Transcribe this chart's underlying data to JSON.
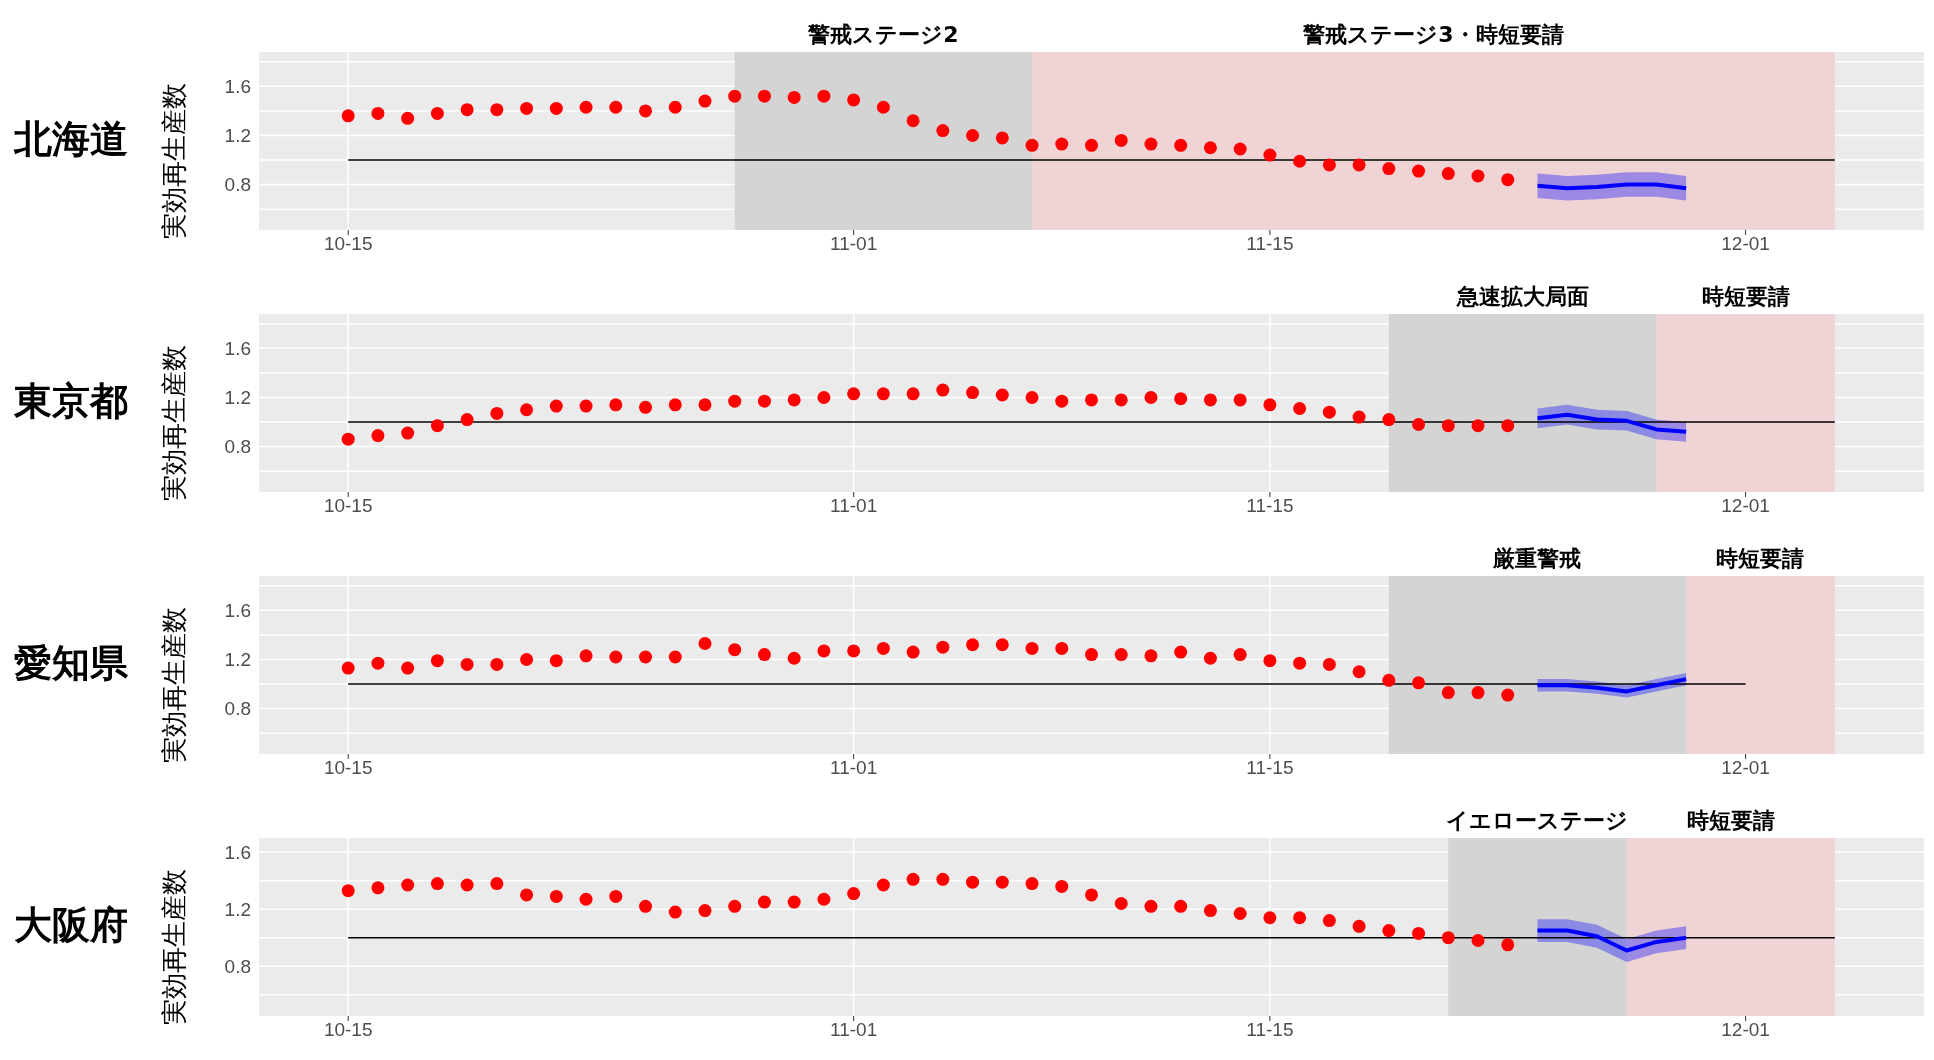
{
  "chart_data": [
    {
      "type": "scatter",
      "title": "北海道",
      "ylabel": "実効再生産数",
      "grid": true,
      "x": [
        "--10-15",
        "--10-16",
        "--10-17",
        "--10-18",
        "--10-19",
        "--10-20",
        "--10-21",
        "--10-22",
        "--10-23",
        "--10-24",
        "--10-25",
        "--10-26",
        "--10-27",
        "--10-28",
        "--10-29",
        "--10-30",
        "--10-31",
        "--11-01",
        "--11-02",
        "--11-03",
        "--11-04",
        "--11-05",
        "--11-06",
        "--11-07",
        "--11-08",
        "--11-09",
        "--11-10",
        "--11-11",
        "--11-12",
        "--11-13",
        "--11-14",
        "--11-15",
        "--11-16",
        "--11-17",
        "--11-18",
        "--11-19",
        "--11-20",
        "--11-21",
        "--11-22",
        "--11-23"
      ],
      "xlim": [
        "--10-12",
        "--12-07"
      ],
      "xticks": [
        {
          "value": "--10-15",
          "label": "10-15"
        },
        {
          "value": "--11-01",
          "label": "11-01"
        },
        {
          "value": "--11-15",
          "label": "11-15"
        },
        {
          "value": "--12-01",
          "label": "12-01"
        }
      ],
      "ylim": [
        0.43,
        1.88
      ],
      "yticks": [
        {
          "value": 0.6,
          "label": null
        },
        0.8,
        {
          "value": 1.0,
          "label": null
        },
        1.2,
        {
          "value": 1.4,
          "label": null
        },
        1.6,
        {
          "value": 1.8,
          "label": null
        }
      ],
      "bands": [
        {
          "axis": "x",
          "from": "--10-28",
          "to": "--11-07",
          "label": "警戒ステージ2",
          "color": "#d4d4d4"
        },
        {
          "axis": "x",
          "from": "--11-07",
          "to": "--12-04",
          "label": "警戒ステージ3・時短要請",
          "color": "#f0d3d5"
        }
      ],
      "series": [
        {
          "type": "line",
          "color": "#000000",
          "x": [
            "--10-15",
            "--12-04"
          ],
          "values": [
            1,
            1
          ]
        },
        {
          "marker": "circle",
          "color": "#ff0000",
          "values": [
            1.36,
            1.38,
            1.34,
            1.38,
            1.41,
            1.41,
            1.42,
            1.42,
            1.43,
            1.43,
            1.4,
            1.43,
            1.48,
            1.52,
            1.52,
            1.51,
            1.52,
            1.49,
            1.43,
            1.32,
            1.24,
            1.2,
            1.18,
            1.12,
            1.13,
            1.12,
            1.16,
            1.13,
            1.12,
            1.1,
            1.09,
            1.04,
            0.99,
            0.96,
            0.96,
            0.93,
            0.91,
            0.89,
            0.87,
            0.84
          ]
        },
        {
          "type": "line",
          "color": "#0000ff",
          "x": [
            "--11-24",
            "--11-25",
            "--11-26",
            "--11-27",
            "--11-28",
            "--11-29"
          ],
          "values": [
            0.79,
            0.77,
            0.78,
            0.8,
            0.8,
            0.77
          ],
          "lower": [
            0.69,
            0.67,
            0.68,
            0.7,
            0.7,
            0.67
          ],
          "upper": [
            0.89,
            0.87,
            0.88,
            0.9,
            0.9,
            0.87
          ]
        }
      ]
    },
    {
      "type": "scatter",
      "title": "東京都",
      "ylabel": "実効再生産数",
      "grid": true,
      "x": [
        "--10-15",
        "--10-16",
        "--10-17",
        "--10-18",
        "--10-19",
        "--10-20",
        "--10-21",
        "--10-22",
        "--10-23",
        "--10-24",
        "--10-25",
        "--10-26",
        "--10-27",
        "--10-28",
        "--10-29",
        "--10-30",
        "--10-31",
        "--11-01",
        "--11-02",
        "--11-03",
        "--11-04",
        "--11-05",
        "--11-06",
        "--11-07",
        "--11-08",
        "--11-09",
        "--11-10",
        "--11-11",
        "--11-12",
        "--11-13",
        "--11-14",
        "--11-15",
        "--11-16",
        "--11-17",
        "--11-18",
        "--11-19",
        "--11-20",
        "--11-21",
        "--11-22",
        "--11-23"
      ],
      "xlim": [
        "--10-12",
        "--12-07"
      ],
      "xticks": [
        {
          "value": "--10-15",
          "label": "10-15"
        },
        {
          "value": "--11-01",
          "label": "11-01"
        },
        {
          "value": "--11-15",
          "label": "11-15"
        },
        {
          "value": "--12-01",
          "label": "12-01"
        }
      ],
      "ylim": [
        0.43,
        1.88
      ],
      "yticks": [
        {
          "value": 0.6,
          "label": null
        },
        0.8,
        {
          "value": 1.0,
          "label": null
        },
        1.2,
        {
          "value": 1.4,
          "label": null
        },
        1.6,
        {
          "value": 1.8,
          "label": null
        }
      ],
      "bands": [
        {
          "axis": "x",
          "from": "--11-19",
          "to": "--11-28",
          "label": "急速拡大局面",
          "color": "#d4d4d4"
        },
        {
          "axis": "x",
          "from": "--11-28",
          "to": "--12-04",
          "label": "時短要請",
          "color": "#f0d3d5"
        }
      ],
      "series": [
        {
          "type": "line",
          "color": "#000000",
          "x": [
            "--10-15",
            "--12-04"
          ],
          "values": [
            1,
            1
          ]
        },
        {
          "marker": "circle",
          "color": "#ff0000",
          "values": [
            0.86,
            0.89,
            0.91,
            0.97,
            1.02,
            1.07,
            1.1,
            1.13,
            1.13,
            1.14,
            1.12,
            1.14,
            1.14,
            1.17,
            1.17,
            1.18,
            1.2,
            1.23,
            1.23,
            1.23,
            1.26,
            1.24,
            1.22,
            1.2,
            1.17,
            1.18,
            1.18,
            1.2,
            1.19,
            1.18,
            1.18,
            1.14,
            1.11,
            1.08,
            1.04,
            1.02,
            0.98,
            0.97,
            0.97,
            0.97
          ]
        },
        {
          "type": "line",
          "color": "#0000ff",
          "x": [
            "--11-24",
            "--11-25",
            "--11-26",
            "--11-27",
            "--11-28",
            "--11-29"
          ],
          "values": [
            1.03,
            1.06,
            1.02,
            1.01,
            0.94,
            0.92
          ],
          "lower": [
            0.95,
            0.98,
            0.94,
            0.93,
            0.86,
            0.84
          ],
          "upper": [
            1.11,
            1.14,
            1.1,
            1.09,
            1.02,
            1.0
          ]
        }
      ]
    },
    {
      "type": "scatter",
      "title": "愛知県",
      "ylabel": "実効再生産数",
      "grid": true,
      "x": [
        "--10-15",
        "--10-16",
        "--10-17",
        "--10-18",
        "--10-19",
        "--10-20",
        "--10-21",
        "--10-22",
        "--10-23",
        "--10-24",
        "--10-25",
        "--10-26",
        "--10-27",
        "--10-28",
        "--10-29",
        "--10-30",
        "--10-31",
        "--11-01",
        "--11-02",
        "--11-03",
        "--11-04",
        "--11-05",
        "--11-06",
        "--11-07",
        "--11-08",
        "--11-09",
        "--11-10",
        "--11-11",
        "--11-12",
        "--11-13",
        "--11-14",
        "--11-15",
        "--11-16",
        "--11-17",
        "--11-18",
        "--11-19",
        "--11-20",
        "--11-21",
        "--11-22",
        "--11-23"
      ],
      "xlim": [
        "--10-12",
        "--12-07"
      ],
      "xticks": [
        {
          "value": "--10-15",
          "label": "10-15"
        },
        {
          "value": "--11-01",
          "label": "11-01"
        },
        {
          "value": "--11-15",
          "label": "11-15"
        },
        {
          "value": "--12-01",
          "label": "12-01"
        }
      ],
      "ylim": [
        0.43,
        1.88
      ],
      "yticks": [
        {
          "value": 0.6,
          "label": null
        },
        0.8,
        {
          "value": 1.0,
          "label": null
        },
        1.2,
        {
          "value": 1.4,
          "label": null
        },
        1.6,
        {
          "value": 1.8,
          "label": null
        }
      ],
      "bands": [
        {
          "axis": "x",
          "from": "--11-19",
          "to": "--11-29",
          "label": "厳重警戒",
          "color": "#d4d4d4"
        },
        {
          "axis": "x",
          "from": "--11-29",
          "to": "--12-04",
          "label": "時短要請",
          "color": "#f0d3d5"
        }
      ],
      "series": [
        {
          "type": "line",
          "color": "#000000",
          "x": [
            "--10-15",
            "--12-01"
          ],
          "values": [
            1,
            1
          ]
        },
        {
          "marker": "circle",
          "color": "#ff0000",
          "values": [
            1.13,
            1.17,
            1.13,
            1.19,
            1.16,
            1.16,
            1.2,
            1.19,
            1.23,
            1.22,
            1.22,
            1.22,
            1.33,
            1.28,
            1.24,
            1.21,
            1.27,
            1.27,
            1.29,
            1.26,
            1.3,
            1.32,
            1.32,
            1.29,
            1.29,
            1.24,
            1.24,
            1.23,
            1.26,
            1.21,
            1.24,
            1.19,
            1.17,
            1.16,
            1.1,
            1.03,
            1.01,
            0.93,
            0.93,
            0.91
          ]
        },
        {
          "type": "line",
          "color": "#0000ff",
          "x": [
            "--11-24",
            "--11-25",
            "--11-26",
            "--11-27",
            "--11-28",
            "--11-29"
          ],
          "values": [
            0.99,
            0.99,
            0.97,
            0.94,
            0.99,
            1.04
          ],
          "lower": [
            0.94,
            0.94,
            0.92,
            0.89,
            0.94,
            0.99
          ],
          "upper": [
            1.04,
            1.04,
            1.02,
            0.99,
            1.04,
            1.09
          ]
        }
      ]
    },
    {
      "type": "scatter",
      "title": "大阪府",
      "ylabel": "実効再生産数",
      "grid": true,
      "x": [
        "--10-15",
        "--10-16",
        "--10-17",
        "--10-18",
        "--10-19",
        "--10-20",
        "--10-21",
        "--10-22",
        "--10-23",
        "--10-24",
        "--10-25",
        "--10-26",
        "--10-27",
        "--10-28",
        "--10-29",
        "--10-30",
        "--10-31",
        "--11-01",
        "--11-02",
        "--11-03",
        "--11-04",
        "--11-05",
        "--11-06",
        "--11-07",
        "--11-08",
        "--11-09",
        "--11-10",
        "--11-11",
        "--11-12",
        "--11-13",
        "--11-14",
        "--11-15",
        "--11-16",
        "--11-17",
        "--11-18",
        "--11-19",
        "--11-20",
        "--11-21",
        "--11-22",
        "--11-23"
      ],
      "xlim": [
        "--10-12",
        "--12-07"
      ],
      "xticks": [
        {
          "value": "--10-15",
          "label": "10-15"
        },
        {
          "value": "--11-01",
          "label": "11-01"
        },
        {
          "value": "--11-15",
          "label": "11-15"
        },
        {
          "value": "--12-01",
          "label": "12-01"
        }
      ],
      "ylim": [
        0.45,
        1.7
      ],
      "yticks": [
        {
          "value": 0.6,
          "label": null
        },
        0.8,
        {
          "value": 1.0,
          "label": null
        },
        1.2,
        {
          "value": 1.4,
          "label": null
        },
        1.6
      ],
      "bands": [
        {
          "axis": "x",
          "from": "--11-21",
          "to": "--11-27",
          "label": "イエローステージ",
          "color": "#d4d4d4"
        },
        {
          "axis": "x",
          "from": "--11-27",
          "to": "--12-04",
          "label": "時短要請",
          "color": "#f0d3d5"
        }
      ],
      "series": [
        {
          "type": "line",
          "color": "#000000",
          "x": [
            "--10-15",
            "--12-04"
          ],
          "values": [
            1,
            1
          ]
        },
        {
          "marker": "circle",
          "color": "#ff0000",
          "values": [
            1.33,
            1.35,
            1.37,
            1.38,
            1.37,
            1.38,
            1.3,
            1.29,
            1.27,
            1.29,
            1.22,
            1.18,
            1.19,
            1.22,
            1.25,
            1.25,
            1.27,
            1.31,
            1.37,
            1.41,
            1.41,
            1.39,
            1.39,
            1.38,
            1.36,
            1.3,
            1.24,
            1.22,
            1.22,
            1.19,
            1.17,
            1.14,
            1.14,
            1.12,
            1.08,
            1.05,
            1.03,
            1.0,
            0.98,
            0.95
          ]
        },
        {
          "type": "line",
          "color": "#0000ff",
          "x": [
            "--11-24",
            "--11-25",
            "--11-26",
            "--11-27",
            "--11-28",
            "--11-29"
          ],
          "values": [
            1.05,
            1.05,
            1.01,
            0.91,
            0.97,
            1.0
          ],
          "lower": [
            0.97,
            0.97,
            0.93,
            0.83,
            0.89,
            0.92
          ],
          "upper": [
            1.13,
            1.13,
            1.09,
            0.99,
            1.05,
            1.08
          ]
        }
      ]
    }
  ]
}
